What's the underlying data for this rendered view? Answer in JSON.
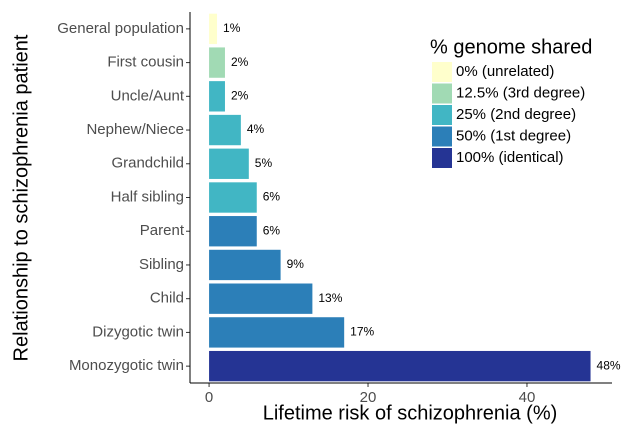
{
  "chart_data": {
    "type": "bar",
    "orientation": "horizontal",
    "x_label": "Lifetime risk of schizophrenia (%)",
    "y_label": "Relationship to schizophrenia patient",
    "categories": [
      "General population",
      "First cousin",
      "Uncle/Aunt",
      "Nephew/Niece",
      "Grandchild",
      "Half sibling",
      "Parent",
      "Sibling",
      "Child",
      "Dizygotic twin",
      "Monozygotic twin"
    ],
    "values": [
      1,
      2,
      2,
      4,
      5,
      6,
      6,
      9,
      13,
      17,
      48
    ],
    "value_labels": [
      "1%",
      "2%",
      "2%",
      "4%",
      "5%",
      "6%",
      "6%",
      "9%",
      "13%",
      "17%",
      "48%"
    ],
    "colors": [
      "#ffffcc",
      "#a1dab4",
      "#41b6c4",
      "#41b6c4",
      "#41b6c4",
      "#41b6c4",
      "#2c7fb8",
      "#2c7fb8",
      "#2c7fb8",
      "#2c7fb8",
      "#253494"
    ],
    "xlim": [
      -2.4,
      50.7
    ],
    "xticks": [
      0,
      20,
      40
    ],
    "legend": {
      "title": "% genome shared",
      "position": "top-right",
      "entries": [
        {
          "name": "0% (unrelated)",
          "color": "#ffffcc"
        },
        {
          "name": "12.5% (3rd degree)",
          "color": "#a1dab4"
        },
        {
          "name": "25% (2nd degree)",
          "color": "#41b6c4"
        },
        {
          "name": "50% (1st degree)",
          "color": "#2c7fb8"
        },
        {
          "name": "100% (identical)",
          "color": "#253494"
        }
      ]
    }
  }
}
